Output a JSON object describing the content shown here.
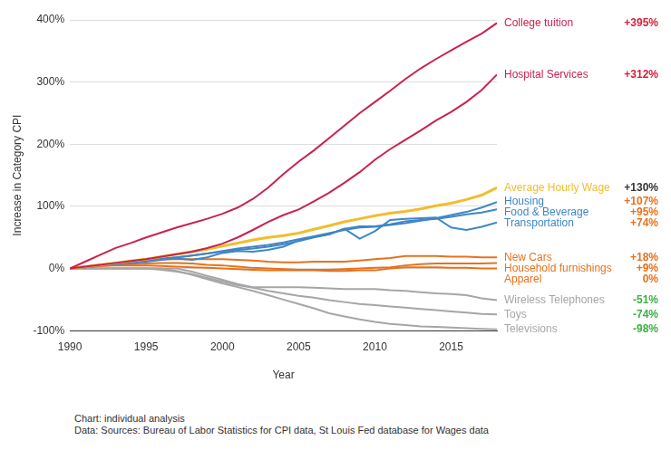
{
  "chart_data": {
    "type": "line",
    "x_label": "Year",
    "y_label": "Increase in Category CPI",
    "annotations": [
      "Chart: individual analysis",
      "Data: Sources: Bureau of Labor Statistics for CPI data, St Louis Fed database for Wages data"
    ],
    "x": [
      1990,
      1991,
      1992,
      1993,
      1994,
      1995,
      1996,
      1997,
      1998,
      1999,
      2000,
      2001,
      2002,
      2003,
      2004,
      2005,
      2006,
      2007,
      2008,
      2009,
      2010,
      2011,
      2012,
      2013,
      2014,
      2015,
      2016,
      2017,
      2018
    ],
    "xlim": [
      1990,
      2018
    ],
    "xticks": [
      1990,
      1995,
      2000,
      2005,
      2010,
      2015
    ],
    "ylim": [
      -100,
      400
    ],
    "yticks": [
      {
        "value": -100,
        "label": "-100%"
      },
      {
        "value": 0,
        "label": "0%"
      },
      {
        "value": 100,
        "label": "100%"
      },
      {
        "value": 200,
        "label": "200%"
      },
      {
        "value": 300,
        "label": "300%"
      },
      {
        "value": 400,
        "label": "400%"
      }
    ],
    "grid": true,
    "data_labels": true,
    "series": [
      {
        "name": "College tuition",
        "color": "#c8234e",
        "values": [
          0,
          11,
          22,
          33,
          41,
          50,
          58,
          66,
          73,
          80,
          88,
          98,
          112,
          130,
          152,
          172,
          190,
          210,
          230,
          250,
          268,
          286,
          305,
          322,
          337,
          351,
          365,
          378,
          395
        ],
        "value_labels": [
          null,
          null,
          null,
          null,
          null,
          null,
          null,
          null,
          null,
          null,
          null,
          null,
          null,
          null,
          null,
          null,
          null,
          null,
          null,
          null,
          null,
          null,
          null,
          null,
          null,
          null,
          null,
          null,
          "+395%"
        ]
      },
      {
        "name": "Hospital Services",
        "color": "#c8234e",
        "values": [
          0,
          3,
          6,
          9,
          12,
          15,
          19,
          23,
          27,
          33,
          40,
          50,
          62,
          75,
          86,
          95,
          108,
          122,
          138,
          155,
          175,
          192,
          207,
          222,
          238,
          252,
          268,
          287,
          312
        ],
        "value_labels": [
          null,
          null,
          null,
          null,
          null,
          null,
          null,
          null,
          null,
          null,
          null,
          null,
          null,
          null,
          null,
          null,
          null,
          null,
          null,
          null,
          null,
          null,
          null,
          null,
          null,
          null,
          null,
          null,
          "+312%"
        ]
      },
      {
        "name": "Average Hourly Wage",
        "color": "#f2bd2c",
        "values": [
          0,
          3,
          6,
          9,
          12,
          15,
          19,
          23,
          27,
          31,
          36,
          41,
          46,
          50,
          53,
          57,
          63,
          69,
          75,
          80,
          85,
          89,
          92,
          96,
          101,
          105,
          111,
          118,
          130
        ],
        "value_labels": [
          null,
          null,
          null,
          null,
          null,
          null,
          null,
          null,
          null,
          null,
          null,
          null,
          null,
          null,
          null,
          null,
          null,
          null,
          null,
          null,
          null,
          null,
          null,
          null,
          null,
          null,
          null,
          null,
          "+130%"
        ]
      },
      {
        "name": "Housing",
        "color": "#3f86c6",
        "values": [
          0,
          3,
          6,
          9,
          11,
          13,
          16,
          18,
          21,
          24,
          28,
          32,
          35,
          38,
          42,
          47,
          52,
          57,
          62,
          66,
          67,
          70,
          73,
          77,
          81,
          86,
          91,
          98,
          107
        ],
        "value_labels": [
          null,
          null,
          null,
          null,
          null,
          null,
          null,
          null,
          null,
          null,
          null,
          null,
          null,
          null,
          null,
          null,
          null,
          null,
          null,
          null,
          null,
          null,
          null,
          null,
          null,
          null,
          null,
          null,
          "+107%"
        ]
      },
      {
        "name": "Food & Beverage",
        "color": "#3f86c6",
        "values": [
          0,
          3,
          6,
          8,
          10,
          12,
          15,
          18,
          21,
          24,
          27,
          30,
          32,
          35,
          39,
          44,
          50,
          55,
          64,
          68,
          68,
          71,
          76,
          78,
          80,
          83,
          87,
          90,
          95
        ],
        "value_labels": [
          null,
          null,
          null,
          null,
          null,
          null,
          null,
          null,
          null,
          null,
          null,
          null,
          null,
          null,
          null,
          null,
          null,
          null,
          null,
          null,
          null,
          null,
          null,
          null,
          null,
          null,
          null,
          null,
          "+95%"
        ]
      },
      {
        "name": "Transportation",
        "color": "#3f86c6",
        "values": [
          0,
          2,
          5,
          7,
          9,
          11,
          14,
          16,
          14,
          18,
          25,
          28,
          27,
          30,
          35,
          45,
          51,
          55,
          64,
          48,
          60,
          78,
          80,
          81,
          82,
          66,
          62,
          67,
          74
        ],
        "value_labels": [
          null,
          null,
          null,
          null,
          null,
          null,
          null,
          null,
          null,
          null,
          null,
          null,
          null,
          null,
          null,
          null,
          null,
          null,
          null,
          null,
          null,
          null,
          null,
          null,
          null,
          null,
          null,
          null,
          "+74%"
        ]
      },
      {
        "name": "New Cars",
        "color": "#e8711c",
        "values": [
          0,
          3,
          6,
          9,
          11,
          13,
          15,
          15,
          15,
          15,
          15,
          14,
          13,
          11,
          10,
          10,
          11,
          11,
          11,
          13,
          15,
          17,
          20,
          20,
          20,
          19,
          19,
          18,
          18
        ],
        "value_labels": [
          null,
          null,
          null,
          null,
          null,
          null,
          null,
          null,
          null,
          null,
          null,
          null,
          null,
          null,
          null,
          null,
          null,
          null,
          null,
          null,
          null,
          null,
          null,
          null,
          null,
          null,
          null,
          null,
          "+18%"
        ]
      },
      {
        "name": "Household furnishings",
        "color": "#e8711c",
        "values": [
          0,
          2,
          4,
          6,
          7,
          8,
          9,
          9,
          8,
          6,
          5,
          3,
          1,
          0,
          -1,
          -2,
          -2,
          -2,
          -1,
          0,
          1,
          2,
          5,
          7,
          8,
          8,
          8,
          8,
          9
        ],
        "value_labels": [
          null,
          null,
          null,
          null,
          null,
          null,
          null,
          null,
          null,
          null,
          null,
          null,
          null,
          null,
          null,
          null,
          null,
          null,
          null,
          null,
          null,
          null,
          null,
          null,
          null,
          null,
          null,
          null,
          "+9%"
        ]
      },
      {
        "name": "Apparel",
        "color": "#e8711c",
        "values": [
          0,
          2,
          4,
          5,
          5,
          5,
          4,
          3,
          2,
          1,
          0,
          -1,
          -2,
          -3,
          -3,
          -3,
          -3,
          -4,
          -4,
          -3,
          -3,
          0,
          2,
          2,
          2,
          1,
          1,
          0,
          0
        ],
        "value_labels": [
          null,
          null,
          null,
          null,
          null,
          null,
          null,
          null,
          null,
          null,
          null,
          null,
          null,
          null,
          null,
          null,
          null,
          null,
          null,
          null,
          null,
          null,
          null,
          null,
          null,
          null,
          null,
          null,
          "0%"
        ]
      },
      {
        "name": "Wireless Telephones",
        "color": "#a6a6a6",
        "values": [
          0,
          0,
          0,
          0,
          0,
          0,
          0,
          0,
          -5,
          -12,
          -18,
          -25,
          -30,
          -30,
          -30,
          -30,
          -31,
          -32,
          -33,
          -33,
          -33,
          -35,
          -36,
          -38,
          -40,
          -41,
          -43,
          -48,
          -51
        ],
        "value_labels": [
          null,
          null,
          null,
          null,
          null,
          null,
          null,
          null,
          null,
          null,
          null,
          null,
          null,
          null,
          null,
          null,
          null,
          null,
          null,
          null,
          null,
          null,
          null,
          null,
          null,
          null,
          null,
          null,
          "-51%"
        ]
      },
      {
        "name": "Toys",
        "color": "#a6a6a6",
        "values": [
          0,
          0,
          0,
          0,
          0,
          0,
          -2,
          -5,
          -9,
          -15,
          -21,
          -27,
          -31,
          -36,
          -40,
          -44,
          -47,
          -51,
          -54,
          -57,
          -59,
          -61,
          -63,
          -65,
          -67,
          -69,
          -71,
          -73,
          -74
        ],
        "value_labels": [
          null,
          null,
          null,
          null,
          null,
          null,
          null,
          null,
          null,
          null,
          null,
          null,
          null,
          null,
          null,
          null,
          null,
          null,
          null,
          null,
          null,
          null,
          null,
          null,
          null,
          null,
          null,
          null,
          "-74%"
        ]
      },
      {
        "name": "Televisions",
        "color": "#a6a6a6",
        "values": [
          0,
          0,
          0,
          0,
          0,
          0,
          0,
          -4,
          -10,
          -17,
          -24,
          -30,
          -36,
          -43,
          -50,
          -57,
          -64,
          -72,
          -77,
          -82,
          -86,
          -89,
          -91,
          -93,
          -94,
          -95,
          -96,
          -97,
          -98
        ],
        "value_labels": [
          null,
          null,
          null,
          null,
          null,
          null,
          null,
          null,
          null,
          null,
          null,
          null,
          null,
          null,
          null,
          null,
          null,
          null,
          null,
          null,
          null,
          null,
          null,
          null,
          null,
          null,
          null,
          null,
          "-98%"
        ]
      }
    ]
  }
}
